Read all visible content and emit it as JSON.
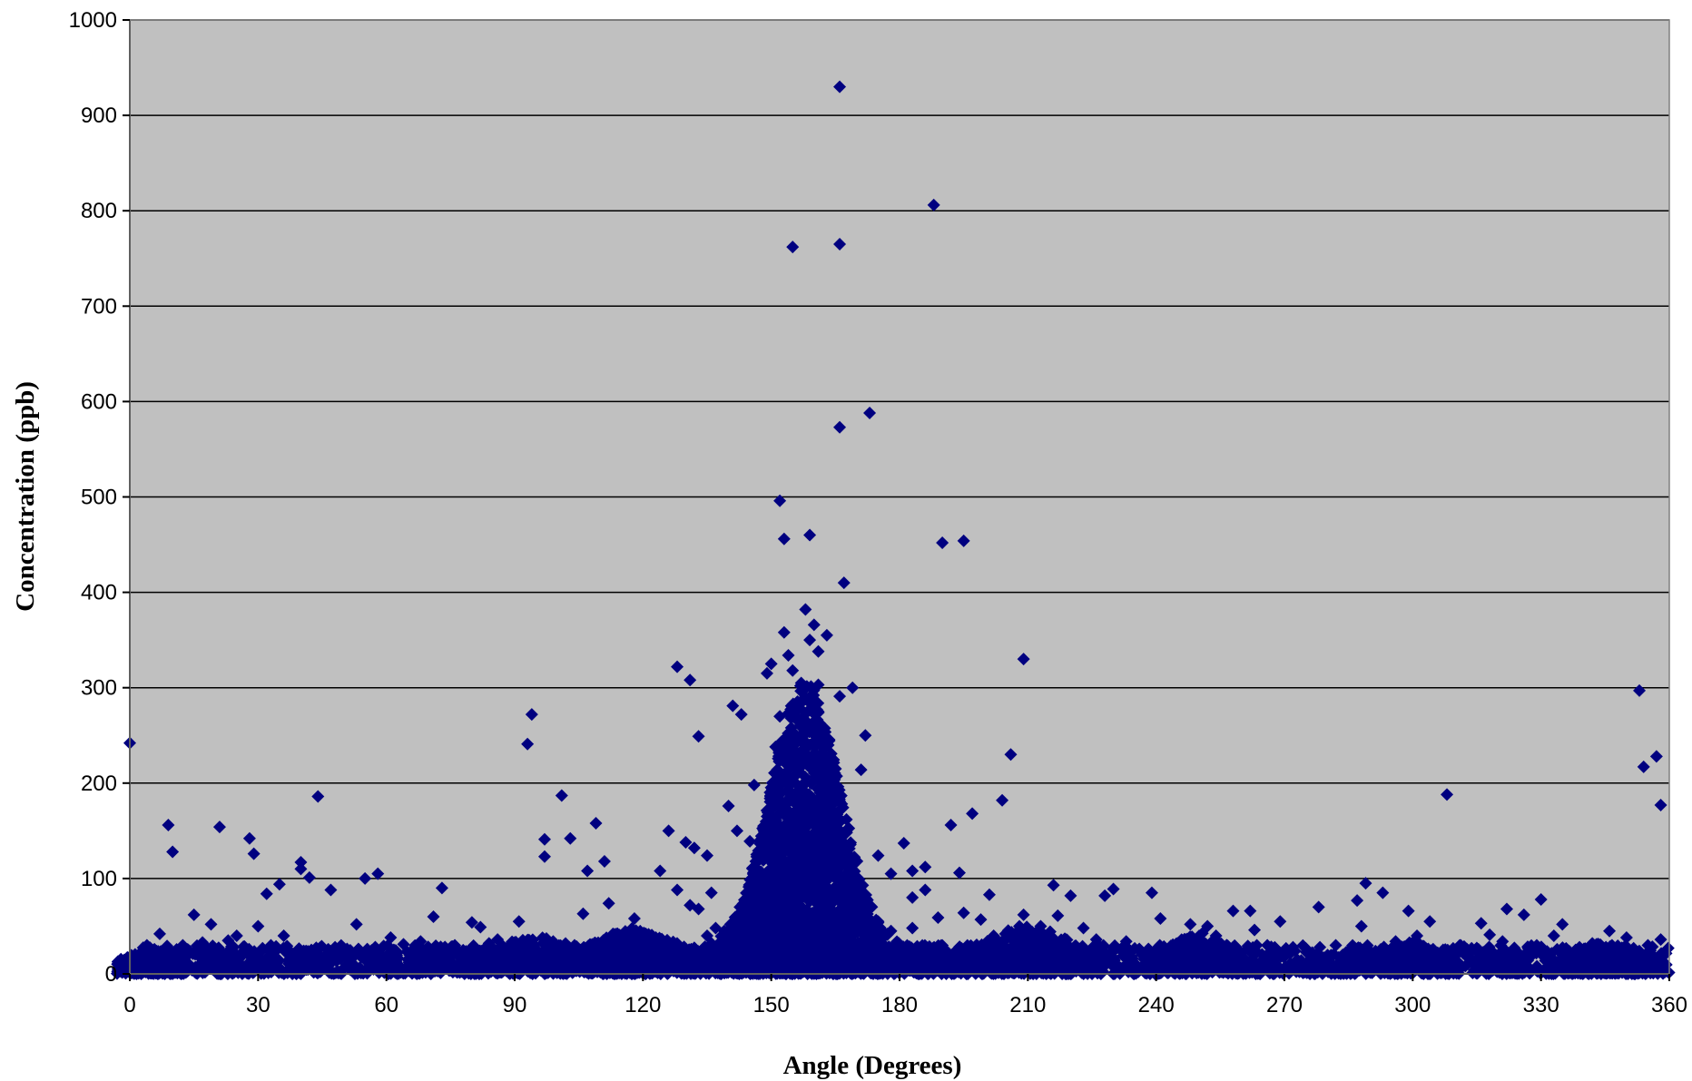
{
  "colors": {
    "plot_background": "#c0c0c0",
    "marker": "#000080",
    "gridline": "#000000",
    "page_background": "#ffffff"
  },
  "chart_data": {
    "type": "scatter",
    "title": "",
    "xlabel": "Angle (Degrees)",
    "ylabel": "Concentration (ppb)",
    "xlim": [
      0,
      360
    ],
    "ylim": [
      0,
      1000
    ],
    "x_ticks": [
      0,
      30,
      60,
      90,
      120,
      150,
      180,
      210,
      240,
      270,
      300,
      330,
      360
    ],
    "y_ticks": [
      0,
      100,
      200,
      300,
      400,
      500,
      600,
      700,
      800,
      900,
      1000
    ],
    "x_tick_labels": [
      "0",
      "30",
      "60",
      "90",
      "120",
      "150",
      "180",
      "210",
      "240",
      "270",
      "300",
      "330",
      "360"
    ],
    "y_tick_labels": [
      "0",
      "100",
      "200",
      "300",
      "400",
      "500",
      "600",
      "700",
      "800",
      "900",
      "1000"
    ],
    "horizontal_grid": true,
    "vertical_grid": false,
    "legend": "none",
    "marker_shape": "diamond",
    "series": [
      {
        "points": [
          [
            166,
            930
          ],
          [
            188,
            806
          ],
          [
            166,
            765
          ],
          [
            155,
            762
          ],
          [
            173,
            588
          ],
          [
            166,
            573
          ],
          [
            152,
            496
          ],
          [
            159,
            460
          ],
          [
            153,
            456
          ],
          [
            190,
            452
          ],
          [
            195,
            454
          ],
          [
            167,
            410
          ],
          [
            158,
            382
          ],
          [
            160,
            366
          ],
          [
            153,
            358
          ],
          [
            163,
            355
          ],
          [
            159,
            350
          ],
          [
            161,
            338
          ],
          [
            154,
            334
          ],
          [
            209,
            330
          ],
          [
            150,
            325
          ],
          [
            128,
            322
          ],
          [
            155,
            318
          ],
          [
            149,
            315
          ],
          [
            131,
            308
          ],
          [
            157,
            305
          ],
          [
            161,
            303
          ],
          [
            169,
            300
          ],
          [
            353,
            297
          ],
          [
            166,
            291
          ],
          [
            141,
            281
          ],
          [
            94,
            272
          ],
          [
            143,
            272
          ],
          [
            152,
            270
          ],
          [
            172,
            250
          ],
          [
            133,
            249
          ],
          [
            0,
            242
          ],
          [
            93,
            241
          ],
          [
            151,
            238
          ],
          [
            206,
            230
          ],
          [
            357,
            228
          ],
          [
            163,
            225
          ],
          [
            354,
            217
          ],
          [
            171,
            214
          ],
          [
            146,
            198
          ],
          [
            308,
            188
          ],
          [
            44,
            186
          ],
          [
            101,
            187
          ],
          [
            204,
            182
          ],
          [
            358,
            177
          ],
          [
            140,
            176
          ],
          [
            197,
            168
          ],
          [
            9,
            156
          ],
          [
            109,
            158
          ],
          [
            21,
            154
          ],
          [
            192,
            156
          ],
          [
            142,
            150
          ],
          [
            126,
            150
          ],
          [
            28,
            142
          ],
          [
            97,
            141
          ],
          [
            103,
            142
          ],
          [
            145,
            139
          ],
          [
            130,
            138
          ],
          [
            181,
            137
          ],
          [
            10,
            128
          ],
          [
            29,
            126
          ],
          [
            97,
            123
          ],
          [
            135,
            124
          ],
          [
            132,
            132
          ],
          [
            175,
            124
          ],
          [
            40,
            117
          ],
          [
            111,
            118
          ],
          [
            186,
            112
          ],
          [
            40,
            110
          ],
          [
            107,
            108
          ],
          [
            42,
            101
          ],
          [
            183,
            108
          ],
          [
            58,
            105
          ],
          [
            55,
            100
          ],
          [
            194,
            106
          ],
          [
            178,
            105
          ],
          [
            124,
            108
          ],
          [
            289,
            95
          ],
          [
            35,
            94
          ],
          [
            73,
            90
          ],
          [
            47,
            88
          ],
          [
            216,
            93
          ],
          [
            230,
            89
          ],
          [
            186,
            88
          ],
          [
            293,
            85
          ],
          [
            32,
            84
          ],
          [
            239,
            85
          ],
          [
            128,
            88
          ],
          [
            220,
            82
          ],
          [
            228,
            82
          ],
          [
            136,
            85
          ],
          [
            183,
            80
          ],
          [
            201,
            83
          ],
          [
            330,
            78
          ],
          [
            287,
            77
          ],
          [
            112,
            74
          ],
          [
            131,
            72
          ],
          [
            133,
            68
          ],
          [
            299,
            66
          ],
          [
            262,
            66
          ],
          [
            322,
            68
          ],
          [
            258,
            66
          ],
          [
            326,
            62
          ],
          [
            195,
            64
          ],
          [
            15,
            62
          ],
          [
            71,
            60
          ],
          [
            106,
            63
          ],
          [
            209,
            62
          ],
          [
            241,
            58
          ],
          [
            217,
            61
          ],
          [
            199,
            57
          ],
          [
            189,
            59
          ],
          [
            304,
            55
          ],
          [
            269,
            55
          ],
          [
            335,
            52
          ],
          [
            19,
            52
          ],
          [
            53,
            52
          ],
          [
            80,
            54
          ],
          [
            91,
            55
          ],
          [
            118,
            58
          ],
          [
            288,
            50
          ],
          [
            316,
            53
          ],
          [
            30,
            50
          ],
          [
            82,
            49
          ],
          [
            248,
            52
          ],
          [
            252,
            50
          ],
          [
            223,
            48
          ],
          [
            263,
            46
          ],
          [
            137,
            48
          ],
          [
            213,
            50
          ],
          [
            183,
            48
          ],
          [
            346,
            45
          ],
          [
            7,
            42
          ],
          [
            25,
            40
          ],
          [
            36,
            40
          ],
          [
            61,
            38
          ],
          [
            86,
            36
          ],
          [
            113,
            42
          ],
          [
            121,
            40
          ],
          [
            254,
            40
          ],
          [
            278,
            70
          ],
          [
            318,
            41
          ],
          [
            333,
            40
          ],
          [
            350,
            38
          ],
          [
            358,
            36
          ],
          [
            4,
            30
          ],
          [
            12,
            28
          ],
          [
            17,
            33
          ],
          [
            23,
            35
          ],
          [
            33,
            30
          ],
          [
            48,
            28
          ],
          [
            64,
            31
          ],
          [
            68,
            34
          ],
          [
            76,
            30
          ],
          [
            84,
            32
          ],
          [
            99,
            34
          ],
          [
            104,
            30
          ],
          [
            115,
            36
          ],
          [
            123,
            38
          ],
          [
            135,
            40
          ],
          [
            139,
            45
          ],
          [
            144,
            50
          ],
          [
            148,
            62
          ],
          [
            150,
            75
          ],
          [
            151,
            90
          ],
          [
            153,
            110
          ],
          [
            154,
            130
          ],
          [
            156,
            150
          ],
          [
            157,
            170
          ],
          [
            158,
            200
          ],
          [
            159,
            240
          ],
          [
            160,
            220
          ],
          [
            161,
            180
          ],
          [
            162,
            160
          ],
          [
            163,
            140
          ],
          [
            164,
            120
          ],
          [
            165,
            100
          ],
          [
            167,
            90
          ],
          [
            168,
            80
          ],
          [
            170,
            70
          ],
          [
            172,
            60
          ],
          [
            175,
            55
          ],
          [
            178,
            45
          ],
          [
            202,
            40
          ],
          [
            211,
            44
          ],
          [
            214,
            38
          ],
          [
            226,
            36
          ],
          [
            233,
            34
          ],
          [
            245,
            32
          ],
          [
            266,
            30
          ],
          [
            272,
            28
          ],
          [
            282,
            30
          ],
          [
            296,
            34
          ],
          [
            301,
            40
          ],
          [
            311,
            30
          ],
          [
            321,
            34
          ],
          [
            329,
            30
          ],
          [
            339,
            28
          ],
          [
            342,
            32
          ],
          [
            355,
            30
          ]
        ],
        "baseline_band": {
          "from": 0,
          "to": 360,
          "value_range": [
            0,
            30
          ]
        },
        "peak_cluster": {
          "center_angle": 158,
          "width_degrees": 30,
          "max_value": 280
        }
      }
    ]
  }
}
